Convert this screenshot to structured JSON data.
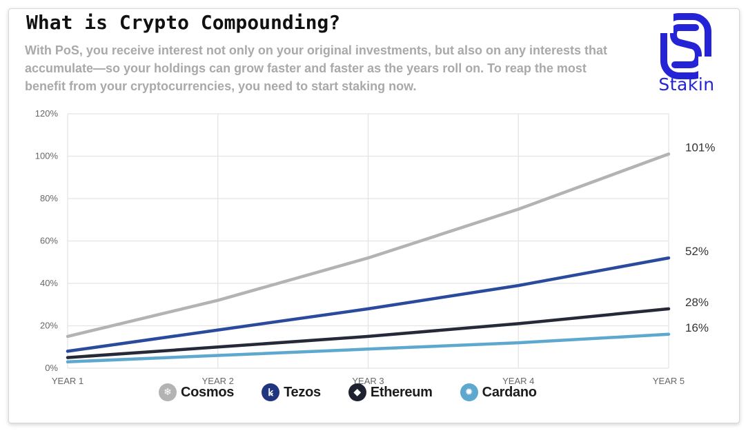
{
  "header": {
    "title": "What is Crypto Compounding?",
    "subtitle": "With PoS, you receive interest not only on your original investments, but also on any interests that accumulate—so your holdings can grow faster and faster as the years roll on. To reap the most benefit from your cryptocurrencies, you need to start staking now."
  },
  "logo": {
    "text": "Stakin",
    "color": "#2424d6",
    "icon": "stakin-s-logo"
  },
  "chart_data": {
    "type": "line",
    "x": [
      "YEAR 1",
      "YEAR 2",
      "YEAR 3",
      "YEAR 4",
      "YEAR 5"
    ],
    "y_ticks": [
      "0%",
      "20%",
      "40%",
      "60%",
      "80%",
      "100%",
      "120%"
    ],
    "ylim": [
      0,
      120
    ],
    "grid": true,
    "legend_position": "bottom",
    "series": [
      {
        "name": "Cosmos",
        "color": "#b3b3b3",
        "icon": "cosmos-icon",
        "values": [
          15,
          32,
          52,
          75,
          101
        ],
        "end_label": "101%"
      },
      {
        "name": "Tezos",
        "color": "#2a4a9e",
        "icon": "tezos-icon",
        "values": [
          8,
          18,
          28,
          39,
          52
        ],
        "end_label": "52%"
      },
      {
        "name": "Ethereum",
        "color": "#262a38",
        "icon": "ethereum-icon",
        "values": [
          5,
          10,
          15,
          21,
          28
        ],
        "end_label": "28%"
      },
      {
        "name": "Cardano",
        "color": "#5ea8d0",
        "icon": "cardano-icon",
        "values": [
          3,
          6,
          9,
          12,
          16
        ],
        "end_label": "16%"
      }
    ]
  }
}
